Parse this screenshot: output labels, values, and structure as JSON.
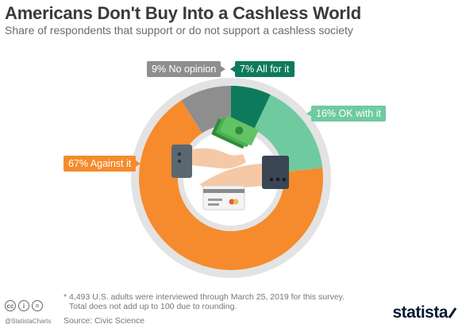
{
  "header": {
    "title": "Americans Don't Buy Into a Cashless World",
    "subtitle": "Share of respondents that support or do not support a cashless society"
  },
  "chart_data": {
    "type": "pie",
    "donut": true,
    "start": "top, clockwise",
    "slices": [
      {
        "label": "All for it",
        "value": 7,
        "color": "#0e7a5c",
        "display": "7% All for it"
      },
      {
        "label": "OK with it",
        "value": 16,
        "color": "#6fcaa0",
        "display": "16% OK with it"
      },
      {
        "label": "Against it",
        "value": 67,
        "color": "#f58b2c",
        "display": "67% Against it"
      },
      {
        "label": "No opinion",
        "value": 9,
        "color": "#8e8e8e",
        "display": "9% No opinion"
      }
    ],
    "ring_color": "#e3e3e3"
  },
  "footer": {
    "footnote_line1": "* 4,493 U.S. adults were interviewed through March 25, 2019 for this survey.",
    "footnote_line2": "Total does not add up to 100 due to rounding.",
    "source": "Source: Civic Science",
    "handle": "@StatistaCharts",
    "brand": "statista",
    "cc_icons": [
      "cc",
      "i",
      "="
    ]
  }
}
